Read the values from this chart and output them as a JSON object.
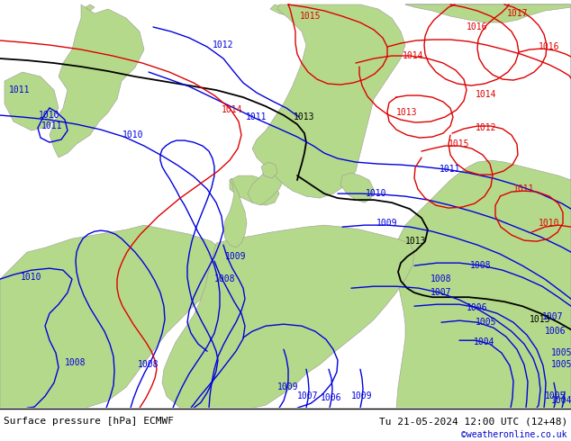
{
  "title_left": "Surface pressure [hPa] ECMWF",
  "title_right": "Tu 21-05-2024 12:00 UTC (12+48)",
  "credit": "©weatheronline.co.uk",
  "land_color": "#b5d98a",
  "sea_color": "#d8d8d8",
  "contour_blue_color": "#0000dd",
  "contour_red_color": "#dd0000",
  "contour_black_color": "#000000",
  "bottom_text_color": "#000000",
  "credit_color": "#0000cc",
  "fig_width": 6.34,
  "fig_height": 4.9,
  "dpi": 100
}
